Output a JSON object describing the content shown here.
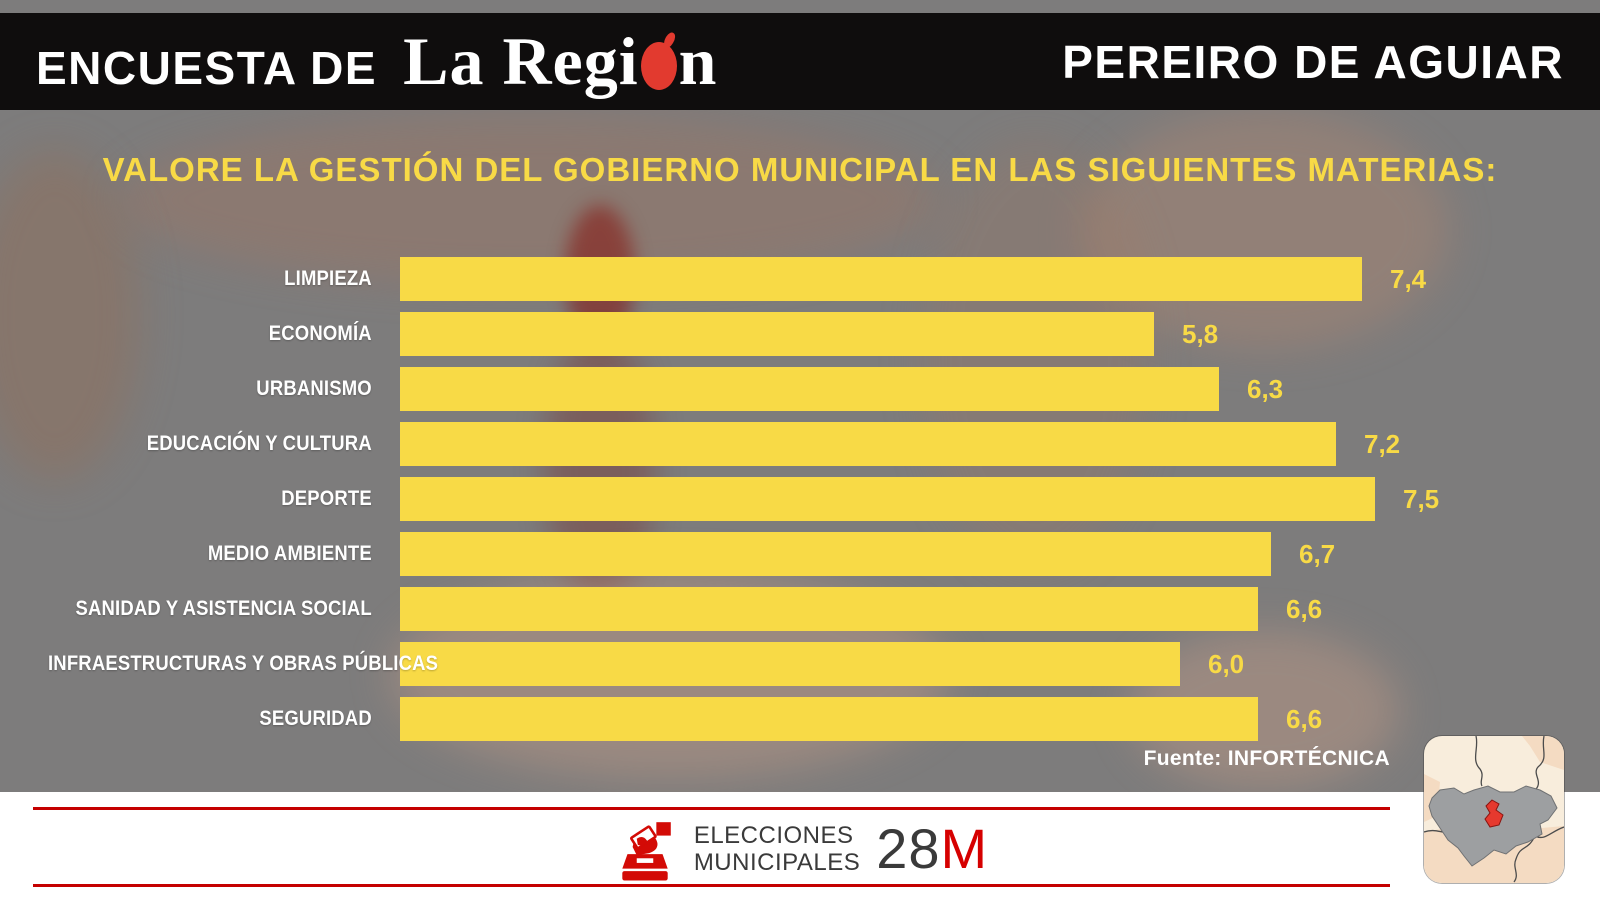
{
  "header": {
    "kicker": "ENCUESTA DE",
    "logo_prefix": "La Regi",
    "logo_suffix": "n",
    "region_title": "PEREIRO DE AGUIAR"
  },
  "title": "VALORE LA GESTIÓN DEL GOBIERNO MUNICIPAL EN LAS SIGUIENTES MATERIAS:",
  "chart_data": {
    "type": "bar",
    "orientation": "horizontal",
    "title": "VALORE LA GESTIÓN DEL GOBIERNO MUNICIPAL EN LAS SIGUIENTES MATERIAS:",
    "categories": [
      "LIMPIEZA",
      "ECONOMÍA",
      "URBANISMO",
      "EDUCACIÓN Y CULTURA",
      "DEPORTE",
      "MEDIO AMBIENTE",
      "SANIDAD Y ASISTENCIA SOCIAL",
      "INFRAESTRUCTURAS Y OBRAS PÚBLICAS",
      "SEGURIDAD"
    ],
    "values": [
      7.4,
      5.8,
      6.3,
      7.2,
      7.5,
      6.7,
      6.6,
      6.0,
      6.6
    ],
    "value_labels": [
      "7,4",
      "5,8",
      "6,3",
      "7,2",
      "7,5",
      "6,7",
      "6,6",
      "6,0",
      "6,6"
    ],
    "xlim": [
      0,
      7.5
    ],
    "grid": false,
    "legend": false,
    "bar_color": "#f8da46",
    "category_label_color": "#ffffff",
    "value_label_color": "#f8da46"
  },
  "source": "Fuente: INFORTÉCNICA",
  "footer": {
    "icon": "ballot-box-icon",
    "line1": "ELECCIONES",
    "line2": "MUNICIPALES",
    "date_number": "28",
    "date_letter": "M"
  },
  "map_card": {
    "icon": "province-map-highlight-icon",
    "highlight_color": "#e6392e"
  },
  "colors": {
    "background": "#7d7c7c",
    "header_bg": "#0f0d0d",
    "accent_yellow": "#f8da46",
    "accent_red": "#c40000",
    "logo_red": "#e23a2f",
    "footer_text": "#3a3a3a",
    "white": "#ffffff"
  }
}
